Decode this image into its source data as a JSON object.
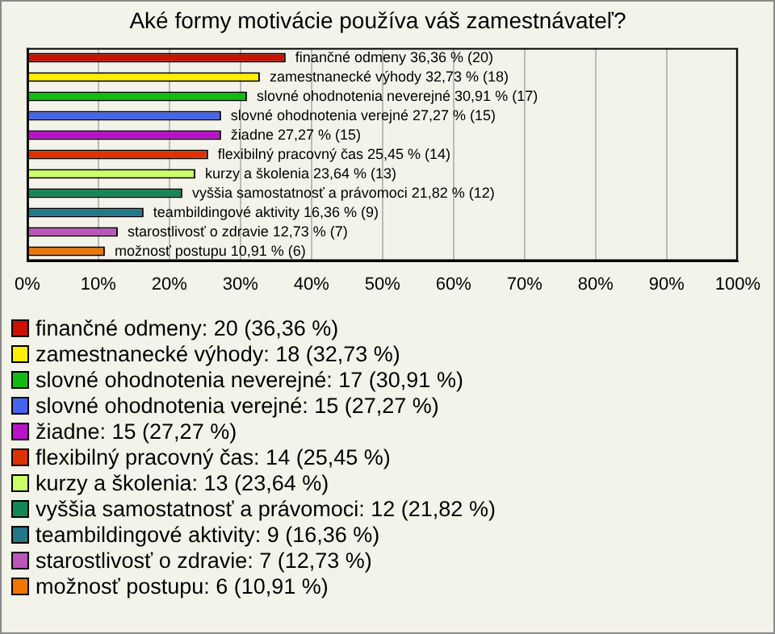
{
  "chart_data": {
    "type": "bar",
    "orientation": "horizontal",
    "title": "Aké formy motivácie používa váš zamestnávateľ?",
    "categories": [
      null,
      null,
      null,
      null,
      null,
      null,
      null,
      null,
      null,
      null,
      null
    ],
    "series": [
      {
        "name": "finančné odmeny: 20 (36,36 %)",
        "color": "#cc1100",
        "values": [
          36.36,
          null,
          null,
          null,
          null,
          null,
          null,
          null,
          null,
          null,
          null
        ],
        "value_labels": [
          "finančné odmeny 36,36 % (20)",
          null,
          null,
          null,
          null,
          null,
          null,
          null,
          null,
          null,
          null
        ]
      },
      {
        "name": "zamestnanecké výhody: 18 (32,73 %)",
        "color": "#ffee00",
        "values": [
          null,
          32.73,
          null,
          null,
          null,
          null,
          null,
          null,
          null,
          null,
          null
        ],
        "value_labels": [
          null,
          "zamestnanecké výhody 32,73 % (18)",
          null,
          null,
          null,
          null,
          null,
          null,
          null,
          null,
          null
        ]
      },
      {
        "name": "slovné ohodnotenia neverejné: 17 (30,91 %)",
        "color": "#11bb11",
        "values": [
          null,
          null,
          30.91,
          null,
          null,
          null,
          null,
          null,
          null,
          null,
          null
        ],
        "value_labels": [
          null,
          null,
          "slovné ohodnotenia neverejné 30,91 % (17)",
          null,
          null,
          null,
          null,
          null,
          null,
          null,
          null
        ]
      },
      {
        "name": "slovné ohodnotenia verejné: 15 (27,27 %)",
        "color": "#4466ee",
        "values": [
          null,
          null,
          null,
          27.27,
          null,
          null,
          null,
          null,
          null,
          null,
          null
        ],
        "value_labels": [
          null,
          null,
          null,
          "slovné ohodnotenia verejné 27,27 % (15)",
          null,
          null,
          null,
          null,
          null,
          null,
          null
        ]
      },
      {
        "name": "žiadne: 15 (27,27 %)",
        "color": "#bb11cc",
        "values": [
          null,
          null,
          null,
          null,
          27.27,
          null,
          null,
          null,
          null,
          null,
          null
        ],
        "value_labels": [
          null,
          null,
          null,
          null,
          "žiadne 27,27 % (15)",
          null,
          null,
          null,
          null,
          null,
          null
        ]
      },
      {
        "name": "flexibilný pracovný čas: 14 (25,45 %)",
        "color": "#dd3300",
        "values": [
          null,
          null,
          null,
          null,
          null,
          25.45,
          null,
          null,
          null,
          null,
          null
        ],
        "value_labels": [
          null,
          null,
          null,
          null,
          null,
          "flexibilný pracovný čas 25,45 % (14)",
          null,
          null,
          null,
          null,
          null
        ]
      },
      {
        "name": "kurzy a školenia: 13 (23,64 %)",
        "color": "#ccff66",
        "values": [
          null,
          null,
          null,
          null,
          null,
          null,
          23.64,
          null,
          null,
          null,
          null
        ],
        "value_labels": [
          null,
          null,
          null,
          null,
          null,
          null,
          "kurzy a školenia 23,64 % (13)",
          null,
          null,
          null,
          null
        ]
      },
      {
        "name": "vyššia samostatnosť a právomoci: 12 (21,82 %)",
        "color": "#118855",
        "values": [
          null,
          null,
          null,
          null,
          null,
          null,
          null,
          21.82,
          null,
          null,
          null
        ],
        "value_labels": [
          null,
          null,
          null,
          null,
          null,
          null,
          null,
          "vyššia samostatnosť a právomoci 21,82 % (12)",
          null,
          null,
          null
        ]
      },
      {
        "name": "teambildingové aktivity: 9 (16,36 %)",
        "color": "#227788",
        "values": [
          null,
          null,
          null,
          null,
          null,
          null,
          null,
          null,
          16.36,
          null,
          null
        ],
        "value_labels": [
          null,
          null,
          null,
          null,
          null,
          null,
          null,
          null,
          "teambildingové aktivity 16,36 % (9)",
          null,
          null
        ]
      },
      {
        "name": "starostlivosť o zdravie: 7 (12,73 %)",
        "color": "#bb55bb",
        "values": [
          null,
          null,
          null,
          null,
          null,
          null,
          null,
          null,
          null,
          12.73,
          null
        ],
        "value_labels": [
          null,
          null,
          null,
          null,
          null,
          null,
          null,
          null,
          null,
          "starostlivosť o zdravie 12,73 % (7)",
          null
        ]
      },
      {
        "name": "možnosť postupu: 6 (10,91 %)",
        "color": "#ee7700",
        "values": [
          null,
          null,
          null,
          null,
          null,
          null,
          null,
          null,
          null,
          null,
          10.91
        ],
        "value_labels": [
          null,
          null,
          null,
          null,
          null,
          null,
          null,
          null,
          null,
          null,
          "možnosť postupu 10,91 % (6)"
        ]
      }
    ],
    "xlim": [
      0,
      100
    ],
    "xticks": [
      {
        "value": 0,
        "label": "0%"
      },
      {
        "value": 10,
        "label": "10%"
      },
      {
        "value": 20,
        "label": "20%"
      },
      {
        "value": 30,
        "label": "30%"
      },
      {
        "value": 40,
        "label": "40%"
      },
      {
        "value": 50,
        "label": "50%"
      },
      {
        "value": 60,
        "label": "60%"
      },
      {
        "value": 70,
        "label": "70%"
      },
      {
        "value": 80,
        "label": "80%"
      },
      {
        "value": 90,
        "label": "90%"
      },
      {
        "value": 100,
        "label": "100%"
      }
    ],
    "grid": "x",
    "legend": "bottom",
    "tick_labels": "x"
  }
}
